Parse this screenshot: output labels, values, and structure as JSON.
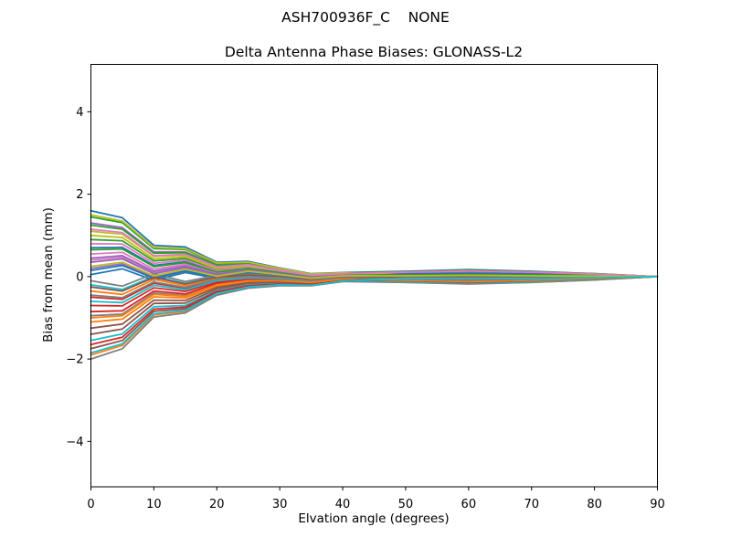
{
  "figure": {
    "suptitle": "ASH700936F_C    NONE",
    "background": "#ffffff",
    "axes_edge_color": "#000000",
    "text_color": "#000000"
  },
  "chart_data": {
    "type": "line",
    "title": "Delta Antenna Phase Biases: GLONASS-L2",
    "xlabel": "Elvation angle (degrees)",
    "ylabel": "Bias from mean (mm)",
    "xlim": [
      0,
      90
    ],
    "ylim": [
      -5.1,
      5.15
    ],
    "xticks": [
      0,
      10,
      20,
      30,
      40,
      50,
      60,
      70,
      80,
      90
    ],
    "xtick_labels": [
      "0",
      "10",
      "20",
      "30",
      "40",
      "50",
      "60",
      "70",
      "80",
      "90"
    ],
    "yticks": [
      -4,
      -2,
      0,
      2,
      4
    ],
    "ytick_labels": [
      "−4",
      "−2",
      "0",
      "2",
      "4"
    ],
    "grid": false,
    "legend": "none",
    "palette": [
      "#1f77b4",
      "#ff7f0e",
      "#2ca02c",
      "#d62728",
      "#9467bd",
      "#8c564b",
      "#e377c2",
      "#7f7f7f",
      "#bcbd22",
      "#17becf"
    ],
    "x": [
      0,
      5,
      10,
      15,
      20,
      25,
      30,
      35,
      40,
      50,
      60,
      70,
      80,
      90
    ],
    "series": [
      {
        "values": [
          1.6,
          1.43,
          0.76,
          0.72,
          0.35,
          0.37,
          0.21,
          0.07,
          0.1,
          0.13,
          0.17,
          0.13,
          0.07,
          0
        ]
      },
      {
        "values": [
          -1.9,
          -1.67,
          -0.93,
          -0.84,
          -0.43,
          -0.26,
          -0.21,
          -0.21,
          -0.11,
          -0.14,
          -0.17,
          -0.14,
          -0.08,
          0
        ]
      },
      {
        "values": [
          0.9,
          0.87,
          0.38,
          0.44,
          0.18,
          0.24,
          0.13,
          0.01,
          0.05,
          0.06,
          0.07,
          0.06,
          0.03,
          0
        ]
      },
      {
        "values": [
          -0.7,
          -0.71,
          -0.27,
          -0.36,
          -0.13,
          -0.05,
          -0.06,
          -0.12,
          -0.04,
          0.02,
          0.03,
          0.02,
          0,
          0
        ]
      },
      {
        "values": [
          1.3,
          1.19,
          0.6,
          0.6,
          0.28,
          0.31,
          0.18,
          0.04,
          0.08,
          0.03,
          0.02,
          0.03,
          0.02,
          0
        ]
      },
      {
        "values": [
          -1.4,
          -1.27,
          -0.65,
          -0.64,
          -0.3,
          -0.17,
          -0.15,
          -0.17,
          -0.08,
          -0.06,
          -0.07,
          -0.06,
          -0.04,
          0
        ]
      },
      {
        "values": [
          0.4,
          0.47,
          0.1,
          0.24,
          0.05,
          0.15,
          0.07,
          -0.03,
          0.02,
          0.07,
          0.1,
          0.07,
          0.04,
          0
        ]
      },
      {
        "values": [
          -2.0,
          -1.75,
          -0.98,
          -0.88,
          -0.45,
          -0.28,
          -0.22,
          -0.22,
          -0.12,
          -0.14,
          -0.18,
          -0.14,
          -0.08,
          0
        ]
      },
      {
        "values": [
          1.1,
          1.03,
          0.49,
          0.52,
          0.23,
          0.28,
          0.15,
          0.03,
          0.07,
          0.07,
          0.08,
          0.07,
          0.04,
          0
        ]
      },
      {
        "values": [
          -0.2,
          -0.31,
          0.01,
          -0.16,
          0,
          0.04,
          0,
          -0.08,
          -0.01,
          0.04,
          0.06,
          0.04,
          0.02,
          0
        ]
      },
      {
        "values": [
          0.7,
          0.71,
          0.27,
          0.36,
          0.13,
          0.21,
          0.1,
          0,
          0.04,
          -0.01,
          -0.02,
          0,
          0,
          0
        ]
      },
      {
        "values": [
          -1.1,
          -1.03,
          -0.49,
          -0.52,
          -0.23,
          -0.12,
          -0.11,
          -0.15,
          -0.07,
          -0.05,
          -0.05,
          -0.05,
          -0.03,
          0
        ]
      },
      {
        "values": [
          1.45,
          1.31,
          0.68,
          0.66,
          0.31,
          0.34,
          0.19,
          0.06,
          0.09,
          0.12,
          0.16,
          0.12,
          0.07,
          0
        ]
      },
      {
        "values": [
          -0.5,
          -0.55,
          -0.16,
          -0.28,
          -0.08,
          -0.01,
          -0.04,
          -0.1,
          -0.03,
          -0.07,
          -0.09,
          -0.07,
          -0.04,
          0
        ]
      },
      {
        "values": [
          0.2,
          0.31,
          -0.01,
          0.16,
          0,
          0.12,
          0.04,
          -0.04,
          0.01,
          0.02,
          0.03,
          0.02,
          0.01,
          0
        ]
      },
      {
        "values": [
          -1.75,
          -1.55,
          -0.84,
          -0.78,
          -0.39,
          -0.24,
          -0.19,
          -0.2,
          -0.11,
          -0.04,
          -0.03,
          -0.04,
          -0.03,
          0
        ]
      },
      {
        "values": [
          0.55,
          0.59,
          0.18,
          0.3,
          0.09,
          0.18,
          0.09,
          -0.02,
          0.03,
          -0.01,
          -0.03,
          -0.01,
          0,
          0
        ]
      },
      {
        "values": [
          -0.95,
          -0.91,
          -0.4,
          -0.46,
          -0.19,
          -0.09,
          -0.09,
          -0.14,
          -0.06,
          -0.04,
          -0.04,
          -0.04,
          -0.02,
          0
        ]
      },
      {
        "values": [
          1.0,
          0.95,
          0.43,
          0.48,
          0.2,
          0.26,
          0.14,
          0.02,
          0.06,
          0.1,
          0.14,
          0.1,
          0.06,
          0
        ]
      },
      {
        "values": [
          -1.55,
          -1.39,
          -0.73,
          -0.7,
          -0.34,
          -0.2,
          -0.17,
          -0.18,
          -0.09,
          -0.12,
          -0.15,
          -0.12,
          -0.07,
          0
        ]
      },
      {
        "values": [
          0.05,
          0.19,
          -0.09,
          0.1,
          -0.04,
          0.09,
          0.03,
          -0.06,
          0,
          0.01,
          0.02,
          0.01,
          0.01,
          0
        ]
      },
      {
        "values": [
          -0.35,
          -0.43,
          -0.07,
          -0.22,
          -0.04,
          0.02,
          -0.02,
          -0.09,
          -0.02,
          0.03,
          0.05,
          0.03,
          0.01,
          0
        ]
      },
      {
        "values": [
          1.25,
          1.15,
          0.57,
          0.58,
          0.26,
          0.31,
          0.17,
          0.04,
          0.08,
          0.02,
          0.02,
          0.02,
          0.02,
          0
        ]
      },
      {
        "values": [
          -0.85,
          -0.83,
          -0.35,
          -0.42,
          -0.16,
          -0.07,
          -0.08,
          -0.13,
          -0.05,
          -0.03,
          -0.04,
          -0.03,
          -0.02,
          0
        ]
      },
      {
        "values": [
          0.35,
          0.43,
          0.07,
          0.22,
          0.04,
          0.14,
          0.06,
          -0.03,
          0.02,
          0.07,
          0.1,
          0.07,
          0.04,
          0
        ]
      },
      {
        "values": [
          -1.25,
          -1.15,
          -0.57,
          -0.58,
          -0.26,
          -0.15,
          -0.13,
          -0.16,
          -0.08,
          -0.1,
          -0.14,
          -0.1,
          -0.06,
          0
        ]
      },
      {
        "values": [
          0.8,
          0.79,
          0.32,
          0.4,
          0.15,
          0.22,
          0.12,
          0,
          0.05,
          0.05,
          0.06,
          0.05,
          0.03,
          0
        ]
      },
      {
        "values": [
          -0.1,
          -0.23,
          0.07,
          -0.12,
          0.03,
          0.06,
          0.01,
          -0.07,
          -0.01,
          0.05,
          0.07,
          0.05,
          0.02,
          0
        ]
      },
      {
        "values": [
          1.5,
          1.35,
          0.71,
          0.68,
          0.33,
          0.35,
          0.2,
          0.06,
          0.09,
          0.04,
          0.03,
          0.04,
          0.03,
          0
        ]
      },
      {
        "values": [
          -0.6,
          -0.63,
          -0.21,
          -0.32,
          -0.1,
          -0.03,
          -0.05,
          -0.11,
          -0.04,
          -0.02,
          -0.02,
          -0.02,
          -0.01,
          0
        ]
      },
      {
        "values": [
          0.15,
          0.27,
          -0.04,
          0.14,
          -0.01,
          0.11,
          0.04,
          -0.05,
          0.01,
          0.06,
          0.08,
          0.06,
          0.03,
          0
        ]
      },
      {
        "values": [
          -1.0,
          -0.95,
          -0.43,
          -0.48,
          -0.2,
          -0.1,
          -0.1,
          -0.14,
          -0.06,
          -0.09,
          -0.12,
          -0.09,
          -0.05,
          0
        ]
      },
      {
        "values": [
          0.65,
          0.67,
          0.24,
          0.34,
          0.11,
          0.2,
          0.1,
          -0.01,
          0.04,
          0.04,
          0.05,
          0.04,
          0.03,
          0
        ]
      },
      {
        "values": [
          -1.65,
          -1.47,
          -0.79,
          -0.74,
          -0.36,
          -0.22,
          -0.18,
          -0.19,
          -0.1,
          -0.03,
          -0.02,
          -0.03,
          -0.03,
          0
        ]
      },
      {
        "values": [
          0.45,
          0.51,
          0.13,
          0.26,
          0.06,
          0.16,
          0.07,
          -0.02,
          0.03,
          -0.02,
          -0.03,
          -0.02,
          -0.01,
          0
        ]
      },
      {
        "values": [
          -0.25,
          -0.35,
          -0.02,
          -0.18,
          -0.01,
          0.04,
          -0.01,
          -0.08,
          -0.02,
          0,
          0,
          0,
          0,
          0
        ]
      },
      {
        "values": [
          1.15,
          1.07,
          0.51,
          0.54,
          0.24,
          0.29,
          0.16,
          0.03,
          0.07,
          0.11,
          0.14,
          0.11,
          0.06,
          0
        ]
      },
      {
        "values": [
          -0.45,
          -0.51,
          -0.13,
          -0.26,
          -0.06,
          0,
          -0.03,
          -0.1,
          -0.03,
          -0.06,
          -0.09,
          -0.06,
          -0.03,
          0
        ]
      },
      {
        "values": [
          0.25,
          0.35,
          0.02,
          0.18,
          0.01,
          0.13,
          0.05,
          -0.04,
          0.02,
          0.02,
          0.03,
          0.02,
          0.01,
          0
        ]
      },
      {
        "values": [
          -1.85,
          -1.63,
          -0.9,
          -0.82,
          -0.41,
          -0.25,
          -0.2,
          -0.21,
          -0.11,
          -0.04,
          -0.04,
          -0.04,
          -0.03,
          0
        ]
      }
    ]
  }
}
